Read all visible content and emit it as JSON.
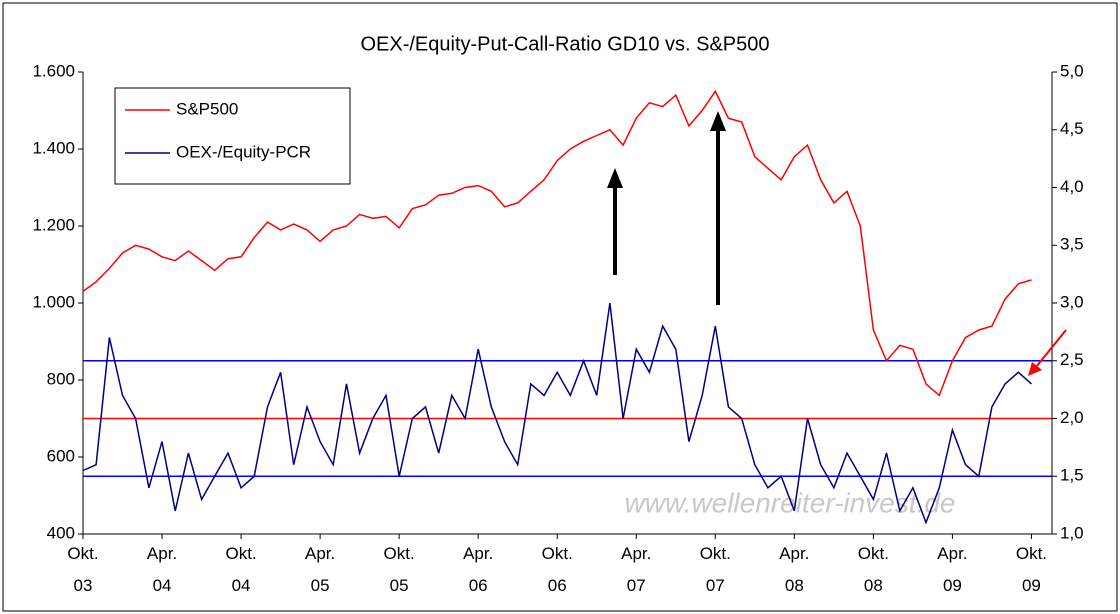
{
  "chart_data": {
    "type": "line",
    "title": "OEX-/Equity-Put-Call-Ratio GD10 vs. S&P500",
    "watermark": "www.wellenreiter-invest.de",
    "x": [
      2003.75,
      2003.833,
      2003.917,
      2004,
      2004.083,
      2004.167,
      2004.25,
      2004.333,
      2004.417,
      2004.5,
      2004.583,
      2004.667,
      2004.75,
      2004.833,
      2004.917,
      2005,
      2005.083,
      2005.167,
      2005.25,
      2005.333,
      2005.417,
      2005.5,
      2005.583,
      2005.667,
      2005.75,
      2005.833,
      2005.917,
      2006,
      2006.083,
      2006.167,
      2006.25,
      2006.333,
      2006.417,
      2006.5,
      2006.583,
      2006.667,
      2006.75,
      2006.833,
      2006.917,
      2007,
      2007.083,
      2007.167,
      2007.25,
      2007.333,
      2007.417,
      2007.5,
      2007.583,
      2007.667,
      2007.75,
      2007.833,
      2007.917,
      2008,
      2008.083,
      2008.167,
      2008.25,
      2008.333,
      2008.417,
      2008.5,
      2008.583,
      2008.667,
      2008.75,
      2008.833,
      2008.917,
      2009,
      2009.083,
      2009.167,
      2009.25,
      2009.333,
      2009.417,
      2009.5,
      2009.583,
      2009.667,
      2009.75
    ],
    "series": [
      {
        "name": "S&P500",
        "color": "#ff0000",
        "axis": "y",
        "values": [
          1030,
          1055,
          1090,
          1130,
          1150,
          1140,
          1120,
          1110,
          1135,
          1110,
          1085,
          1115,
          1120,
          1170,
          1210,
          1190,
          1205,
          1190,
          1160,
          1190,
          1200,
          1230,
          1220,
          1225,
          1195,
          1245,
          1255,
          1280,
          1285,
          1300,
          1305,
          1290,
          1250,
          1260,
          1290,
          1320,
          1370,
          1400,
          1420,
          1435,
          1450,
          1410,
          1480,
          1520,
          1510,
          1540,
          1460,
          1500,
          1550,
          1480,
          1470,
          1380,
          1350,
          1320,
          1380,
          1410,
          1320,
          1260,
          1290,
          1200,
          930,
          850,
          890,
          880,
          790,
          760,
          850,
          910,
          930,
          940,
          1010,
          1050,
          1060
        ]
      },
      {
        "name": "OEX-/Equity-PCR",
        "color": "#000080",
        "axis": "y2",
        "values": [
          1.55,
          1.6,
          2.7,
          2.2,
          2.0,
          1.4,
          1.8,
          1.2,
          1.7,
          1.3,
          1.5,
          1.7,
          1.4,
          1.5,
          2.1,
          2.4,
          1.6,
          2.1,
          1.8,
          1.6,
          2.3,
          1.7,
          2.0,
          2.2,
          1.5,
          2.0,
          2.1,
          1.7,
          2.2,
          2.0,
          2.6,
          2.1,
          1.8,
          1.6,
          2.3,
          2.2,
          2.4,
          2.2,
          2.5,
          2.2,
          3.0,
          2.0,
          2.6,
          2.4,
          2.8,
          2.6,
          1.8,
          2.2,
          2.8,
          2.1,
          2.0,
          1.6,
          1.4,
          1.5,
          1.2,
          2.0,
          1.6,
          1.4,
          1.7,
          1.5,
          1.3,
          1.7,
          1.2,
          1.4,
          1.1,
          1.4,
          1.9,
          1.6,
          1.5,
          2.1,
          2.3,
          2.4,
          2.3
        ]
      }
    ],
    "reference_lines": [
      {
        "value": 2.5,
        "color": "#0000ff",
        "axis": "y2"
      },
      {
        "value": 2.0,
        "color": "#ff0000",
        "axis": "y2"
      },
      {
        "value": 1.5,
        "color": "#0000ff",
        "axis": "y2"
      }
    ],
    "xlim": [
      2003.75,
      2009.88
    ],
    "xticks": [
      {
        "value": 2003.75,
        "label": "Okt.\n03"
      },
      {
        "value": 2004.25,
        "label": "Apr.\n04"
      },
      {
        "value": 2004.75,
        "label": "Okt.\n04"
      },
      {
        "value": 2005.25,
        "label": "Apr.\n05"
      },
      {
        "value": 2005.75,
        "label": "Okt.\n05"
      },
      {
        "value": 2006.25,
        "label": "Apr.\n06"
      },
      {
        "value": 2006.75,
        "label": "Okt.\n06"
      },
      {
        "value": 2007.25,
        "label": "Apr.\n07"
      },
      {
        "value": 2007.75,
        "label": "Okt.\n07"
      },
      {
        "value": 2008.25,
        "label": "Apr.\n08"
      },
      {
        "value": 2008.75,
        "label": "Okt.\n08"
      },
      {
        "value": 2009.25,
        "label": "Apr.\n09"
      },
      {
        "value": 2009.75,
        "label": "Okt.\n09"
      }
    ],
    "ylim": [
      400,
      1600
    ],
    "yticks": [
      400,
      600,
      800,
      {
        "value": 1000,
        "label": "1.000"
      },
      {
        "value": 1200,
        "label": "1.200"
      },
      {
        "value": 1400,
        "label": "1.400"
      },
      {
        "value": 1600,
        "label": "1.600"
      }
    ],
    "y2lim": [
      1.0,
      5.0
    ],
    "y2ticks": [
      {
        "value": 1.0,
        "label": "1,0"
      },
      {
        "value": 1.5,
        "label": "1,5"
      },
      {
        "value": 2.0,
        "label": "2,0"
      },
      {
        "value": 2.5,
        "label": "2,5"
      },
      {
        "value": 3.0,
        "label": "3,0"
      },
      {
        "value": 3.5,
        "label": "3,5"
      },
      {
        "value": 4.0,
        "label": "4,0"
      },
      {
        "value": 4.5,
        "label": "4,5"
      },
      {
        "value": 5.0,
        "label": "5,0"
      }
    ],
    "legend": "upper left"
  }
}
